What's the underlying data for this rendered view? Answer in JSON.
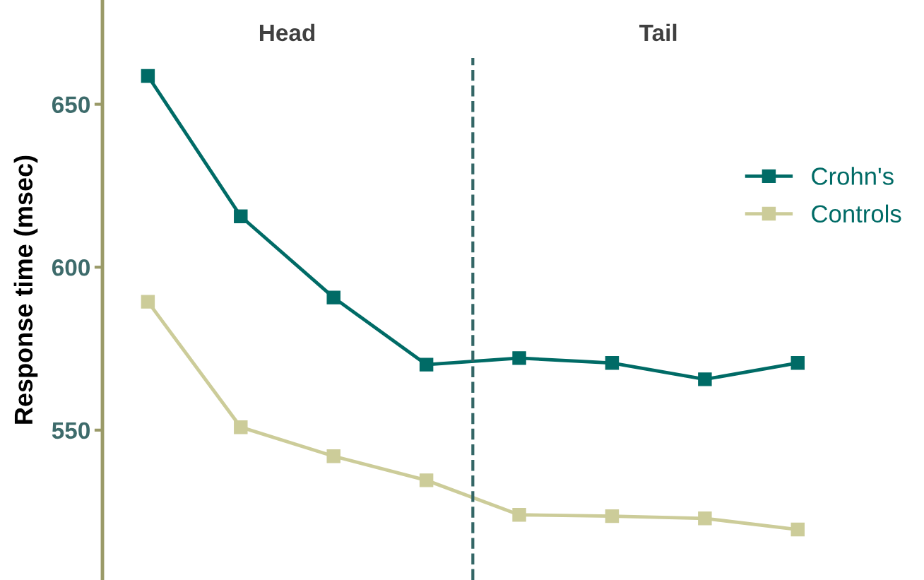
{
  "chart_data": {
    "type": "line",
    "ylabel": "Response time (msec)",
    "categories": [
      null,
      null,
      null,
      null,
      null,
      null,
      null,
      null
    ],
    "series": [
      {
        "name": "Crohn's",
        "color": "#006b66",
        "values": [
          658.7,
          615.6,
          590.7,
          570.1,
          572.1,
          570.6,
          565.6,
          570.6
        ]
      },
      {
        "name": "Controls",
        "color": "#cccc99",
        "values": [
          589.4,
          550.9,
          542.0,
          534.6,
          524.0,
          523.6,
          522.9,
          519.5
        ]
      }
    ],
    "ylim": [
      504,
      682
    ],
    "yticks": [
      550,
      600,
      650
    ],
    "annotations": [
      "Head",
      "Tail"
    ],
    "marker": "square",
    "line_style": "solid",
    "grid": false,
    "legend": "right"
  }
}
